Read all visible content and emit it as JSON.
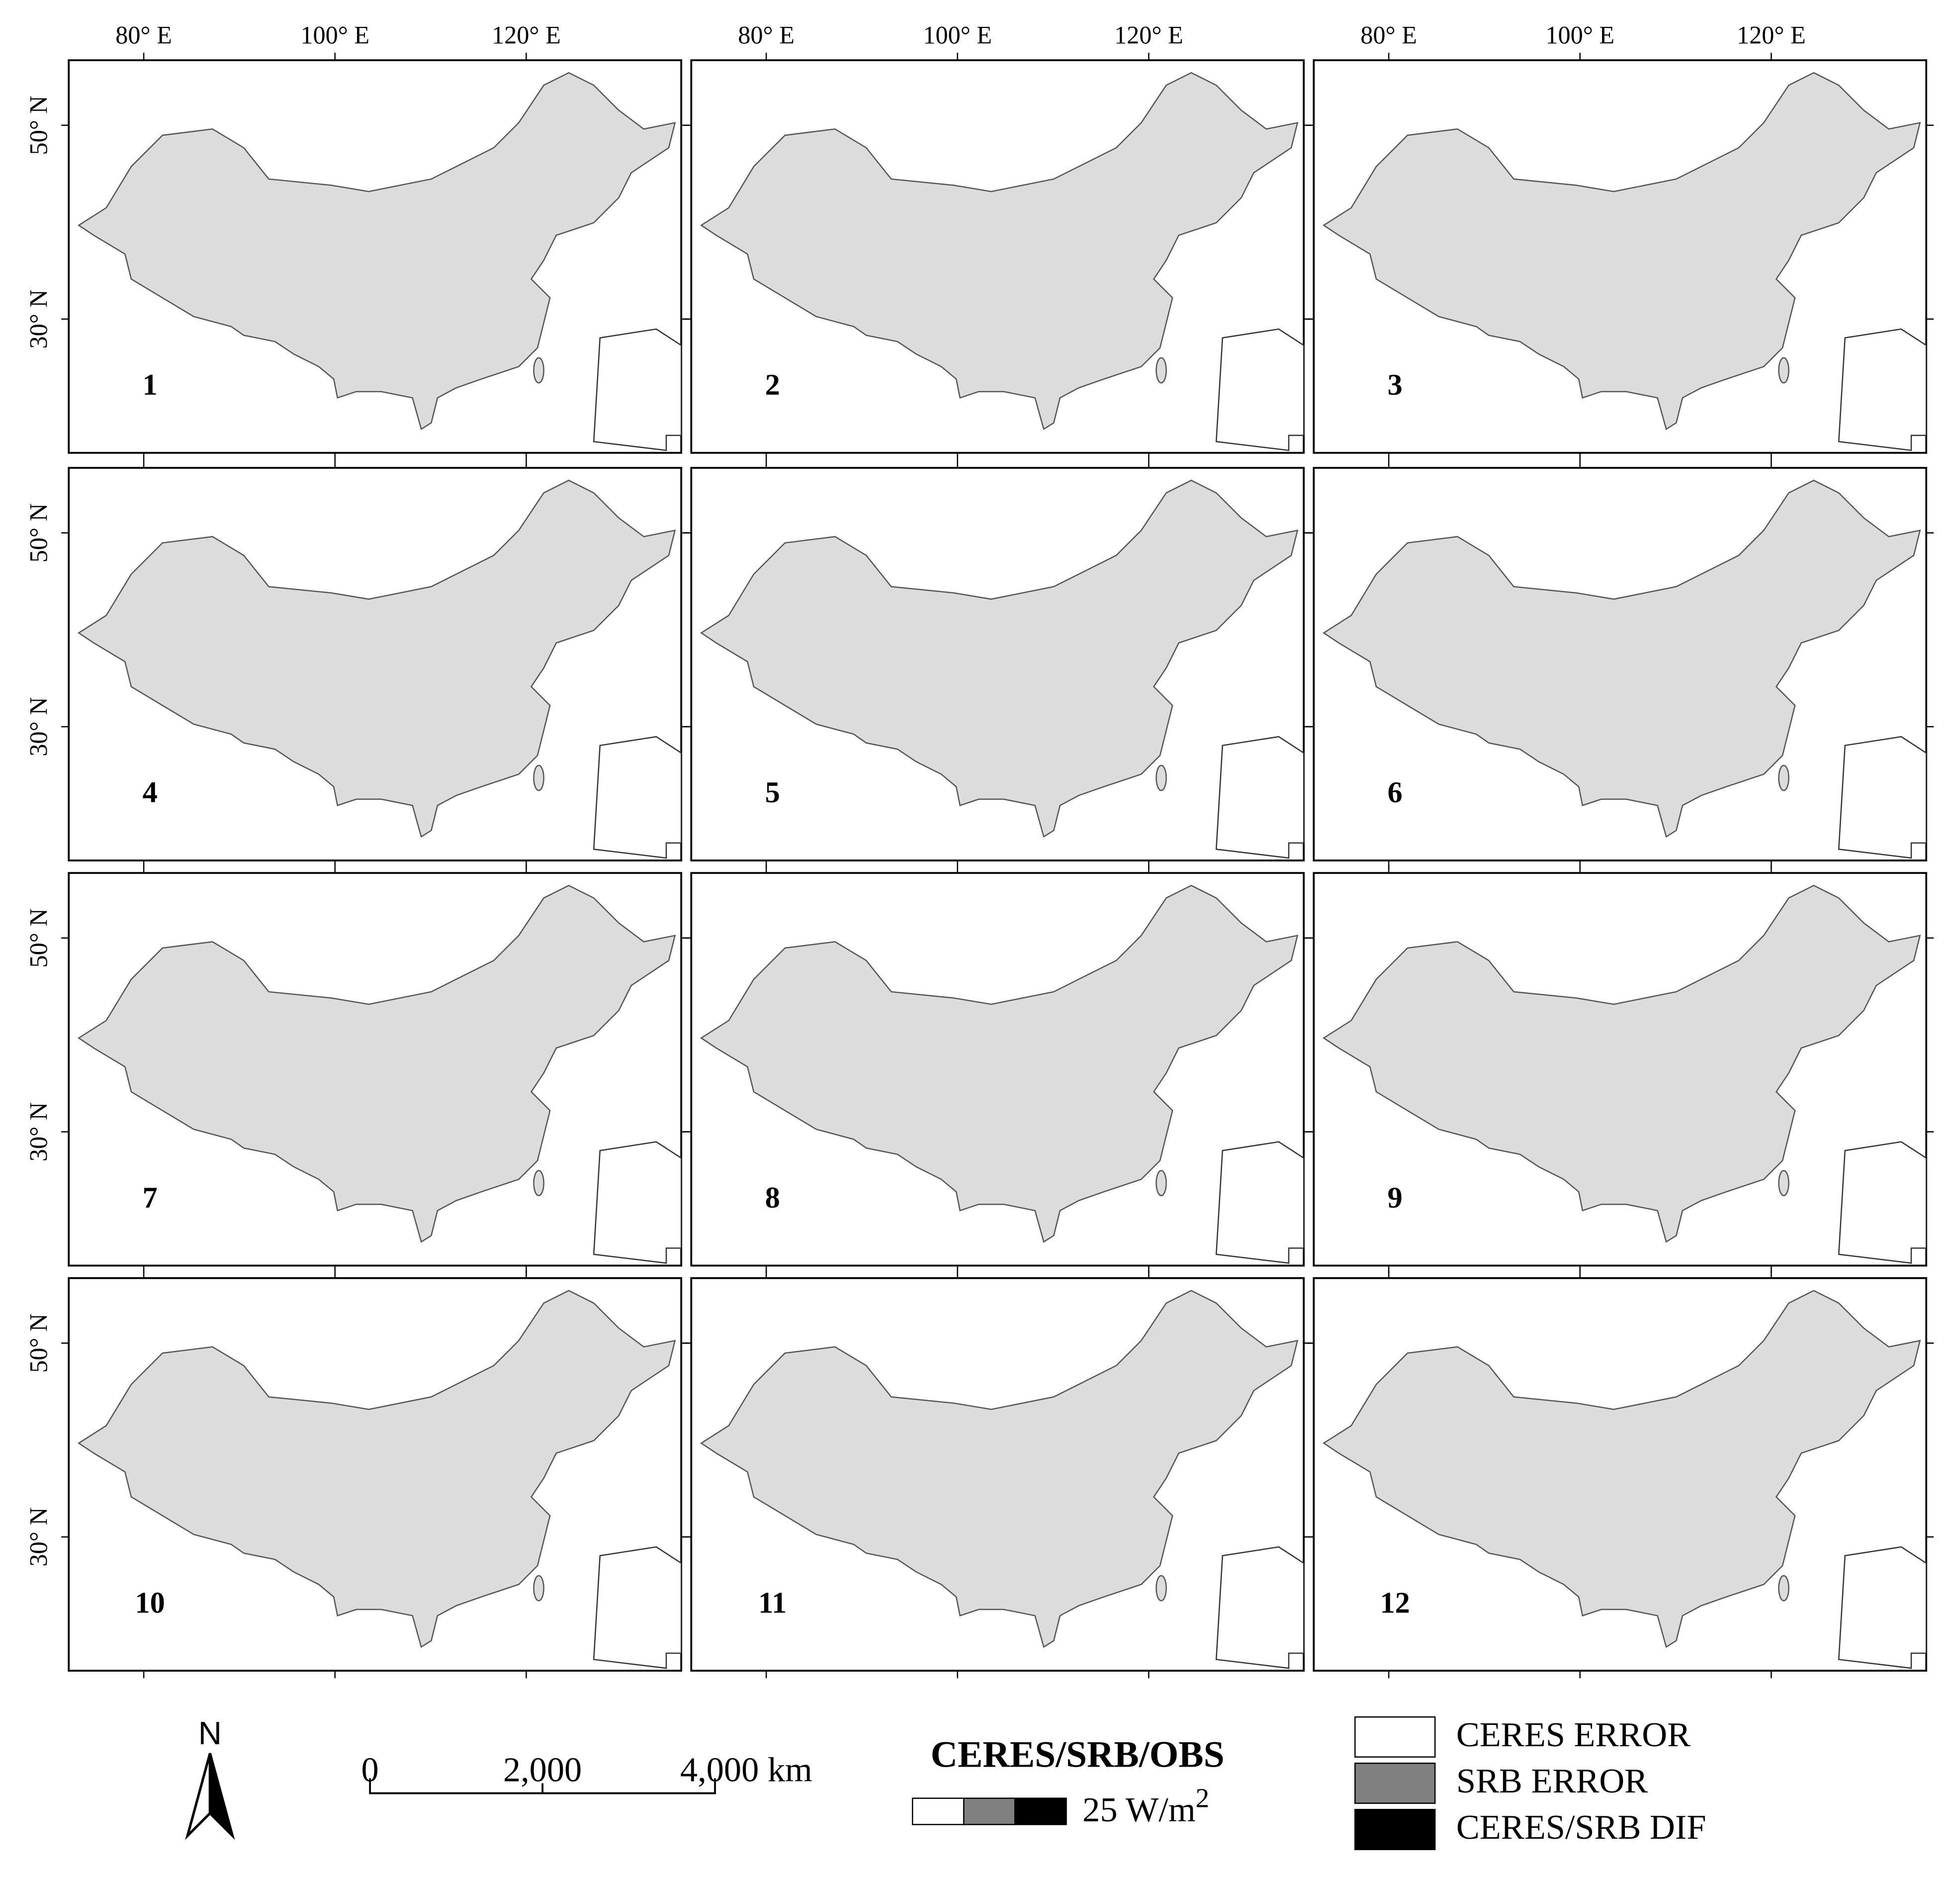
{
  "panels": [
    {
      "label": "1"
    },
    {
      "label": "2"
    },
    {
      "label": "3"
    },
    {
      "label": "4"
    },
    {
      "label": "5"
    },
    {
      "label": "6"
    },
    {
      "label": "7"
    },
    {
      "label": "8"
    },
    {
      "label": "9"
    },
    {
      "label": "10"
    },
    {
      "label": "11"
    },
    {
      "label": "12"
    }
  ],
  "axes": {
    "longitude": [
      "80° E",
      "100° E",
      "120° E"
    ],
    "latitude": [
      "50° N",
      "30° N"
    ]
  },
  "north": "N",
  "scale_bar": {
    "labels": [
      "0",
      "2,000",
      "4,000 km"
    ]
  },
  "legend": {
    "title": "CERES/SRB/OBS",
    "unit": "25 W/m",
    "unit_sup": "2",
    "items": [
      {
        "label": "CERES ERROR",
        "color": "#ffffff"
      },
      {
        "label": "SRB ERROR",
        "color": "#808080"
      },
      {
        "label": "CERES/SRB DIF",
        "color": "#000000"
      }
    ]
  }
}
